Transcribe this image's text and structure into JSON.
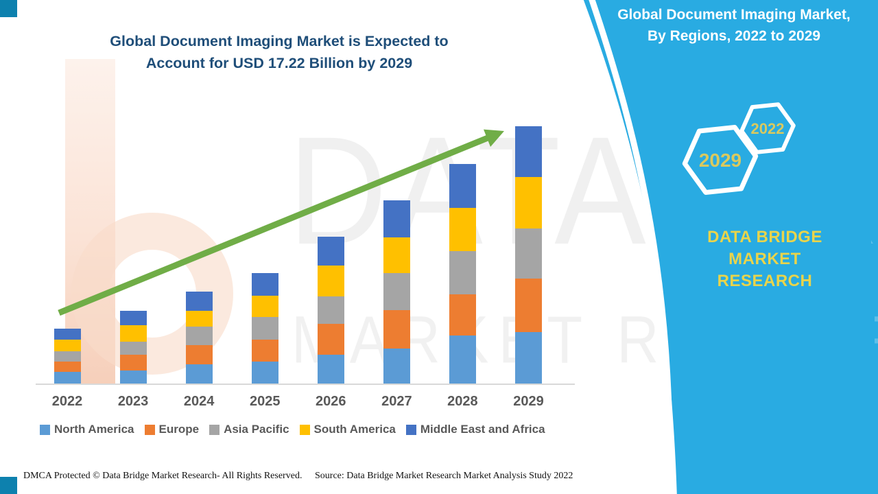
{
  "page": {
    "background": "#FFFFFF",
    "accent_cyan": "#29ABE2"
  },
  "title": {
    "line1": "Global Document Imaging Market is Expected to",
    "line2": "Account for USD 17.22 Billion by 2029",
    "color": "#1F4E79"
  },
  "banner": {
    "line1": "Global Document Imaging Market,",
    "line2": "By Regions, 2022 to 2029",
    "background": "#29ABE2",
    "text_color": "#FFFFFF",
    "hexagons": [
      {
        "label": "2029"
      },
      {
        "label": "2022"
      }
    ],
    "hexagon_text_color": "#D9C95F",
    "brand_line1": "DATA BRIDGE MARKET",
    "brand_line2": "RESEARCH",
    "brand_color": "#E9D44B"
  },
  "watermark": {
    "row1": "DATA BRIDGE",
    "row2": "MARKET RESEARCH"
  },
  "footer": {
    "left": "DMCA Protected © Data Bridge Market Research- All Rights Reserved.",
    "right": "Source: Data Bridge Market Research Market Analysis Study 2022"
  },
  "chart_data": {
    "type": "bar",
    "stacked": true,
    "title": "Global Document Imaging Market is Expected to Account for USD 17.22 Billion by 2029",
    "unit": "USD Billion",
    "categories": [
      "2022",
      "2023",
      "2024",
      "2025",
      "2026",
      "2027",
      "2028",
      "2029"
    ],
    "series": [
      {
        "name": "North America",
        "color": "#5B9BD5",
        "values": [
          0.78,
          0.87,
          1.29,
          1.47,
          1.93,
          2.34,
          3.21,
          3.45
        ]
      },
      {
        "name": "Europe",
        "color": "#ED7D31",
        "values": [
          0.69,
          1.06,
          1.29,
          1.47,
          2.07,
          2.57,
          2.76,
          3.58
        ]
      },
      {
        "name": "Asia Pacific",
        "color": "#A5A5A5",
        "values": [
          0.69,
          0.87,
          1.24,
          1.52,
          1.84,
          2.48,
          2.89,
          3.35
        ]
      },
      {
        "name": "South America",
        "color": "#FFC000",
        "values": [
          0.78,
          1.1,
          1.06,
          1.42,
          2.07,
          2.39,
          2.89,
          3.44
        ]
      },
      {
        "name": "Middle East and Africa",
        "color": "#4472C4",
        "values": [
          0.73,
          0.96,
          1.29,
          1.52,
          1.93,
          2.48,
          2.94,
          3.4
        ]
      }
    ],
    "estimated_totals": [
      3.67,
      4.86,
      6.17,
      7.4,
      9.84,
      12.26,
      14.69,
      17.22
    ],
    "note": "Values estimated from bar heights; only the 2029 total of USD 17.22 Billion is stated on the image",
    "annotations": [
      "Green upward trend arrow spanning 2022 to 2029"
    ],
    "y_axis": {
      "visible": false
    },
    "grid": false,
    "legend_position": "bottom",
    "arrow_color": "#70AD47"
  }
}
